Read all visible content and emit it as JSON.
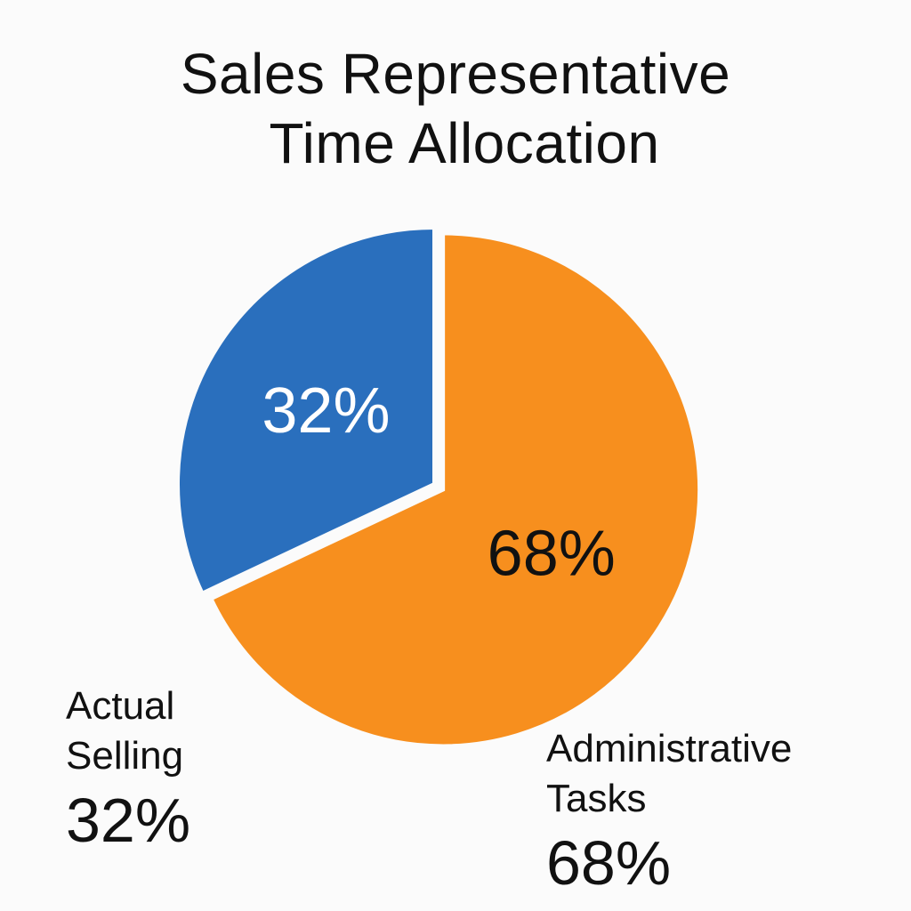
{
  "chart_data": {
    "type": "pie",
    "title_lines": [
      "Sales Representative",
      "Time Allocation"
    ],
    "slices": [
      {
        "label_lines": [
          "Actual",
          "Selling"
        ],
        "value": 32,
        "value_label": "32%",
        "color": "#2a6fbd",
        "text_color": "#ffffff"
      },
      {
        "label_lines": [
          "Administrative",
          "Tasks"
        ],
        "value": 68,
        "value_label": "68%",
        "color": "#f78f1e",
        "text_color": "#111111"
      }
    ]
  }
}
